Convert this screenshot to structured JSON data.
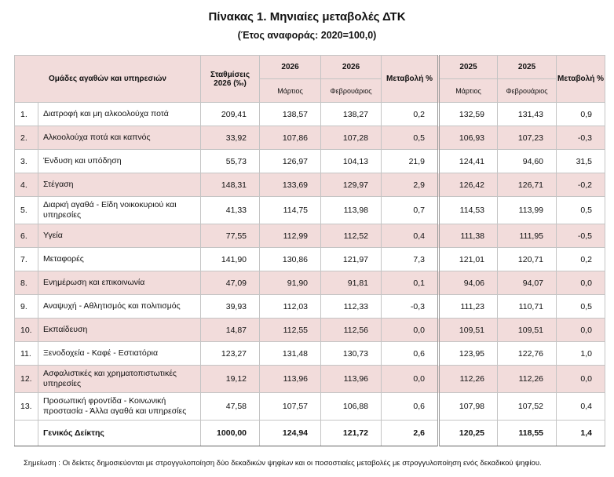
{
  "header": {
    "title": "Πίνακας 1. Μηνιαίες μεταβολές ΔΤΚ",
    "subtitle": "(Έτος αναφοράς: 2020=100,0)"
  },
  "table": {
    "columns": {
      "group": "Ομάδες αγαθών και υπηρεσιών",
      "weights": "Σταθμίσεις 2026 (‰)",
      "year_a": "2026",
      "year_b": "2026",
      "change_a": "Μεταβολή %",
      "year_c": "2025",
      "year_d": "2025",
      "change_b": "Μεταβολή %",
      "month_a": "Μάρτιος",
      "month_b": "Φεβρουάριος",
      "month_c": "Μάρτιος",
      "month_d": "Φεβρουάριος"
    },
    "rows": [
      [
        "1.",
        "Διατροφή και μη αλκοολούχα ποτά",
        "209,41",
        "138,57",
        "138,27",
        "0,2",
        "132,59",
        "131,43",
        "0,9"
      ],
      [
        "2.",
        "Αλκοολούχα ποτά και καπνός",
        "33,92",
        "107,86",
        "107,28",
        "0,5",
        "106,93",
        "107,23",
        "-0,3"
      ],
      [
        "3.",
        "Ένδυση και υπόδηση",
        "55,73",
        "126,97",
        "104,13",
        "21,9",
        "124,41",
        "94,60",
        "31,5"
      ],
      [
        "4.",
        "Στέγαση",
        "148,31",
        "133,69",
        "129,97",
        "2,9",
        "126,42",
        "126,71",
        "-0,2"
      ],
      [
        "5.",
        "Διαρκή αγαθά - Είδη νοικοκυριού και υπηρεσίες",
        "41,33",
        "114,75",
        "113,98",
        "0,7",
        "114,53",
        "113,99",
        "0,5"
      ],
      [
        "6.",
        "Υγεία",
        "77,55",
        "112,99",
        "112,52",
        "0,4",
        "111,38",
        "111,95",
        "-0,5"
      ],
      [
        "7.",
        "Μεταφορές",
        "141,90",
        "130,86",
        "121,97",
        "7,3",
        "121,01",
        "120,71",
        "0,2"
      ],
      [
        "8.",
        "Ενημέρωση και επικοινωνία",
        "47,09",
        "91,90",
        "91,81",
        "0,1",
        "94,06",
        "94,07",
        "0,0"
      ],
      [
        "9.",
        "Αναψυχή - Αθλητισμός και πολιτισμός",
        "39,93",
        "112,03",
        "112,33",
        "-0,3",
        "111,23",
        "110,71",
        "0,5"
      ],
      [
        "10.",
        "Εκπαίδευση",
        "14,87",
        "112,55",
        "112,56",
        "0,0",
        "109,51",
        "109,51",
        "0,0"
      ],
      [
        "11.",
        "Ξενοδοχεία - Καφέ - Εστιατόρια",
        "123,27",
        "131,48",
        "130,73",
        "0,6",
        "123,95",
        "122,76",
        "1,0"
      ],
      [
        "12.",
        "Ασφαλιστικές και χρηματοπιστωτικές υπηρεσίες",
        "19,12",
        "113,96",
        "113,96",
        "0,0",
        "112,26",
        "112,26",
        "0,0"
      ],
      [
        "13.",
        "Προσωπική φροντίδα - Κοινωνική προστασία - Άλλα αγαθά και υπηρεσίες",
        "47,58",
        "107,57",
        "106,88",
        "0,6",
        "107,98",
        "107,52",
        "0,4"
      ]
    ],
    "total": [
      "Γενικός Δείκτης",
      "1000,00",
      "124,94",
      "121,72",
      "2,6",
      "120,25",
      "118,55",
      "1,4"
    ]
  },
  "footnote": "Σημείωση :  Οι δείκτες δημοσιεύονται με στρογγυλοποίηση δύο δεκαδικών ψηφίων και οι ποσοστιαίες μεταβολές με στρογγυλοποίηση ενός δεκαδικού ψηφίου."
}
